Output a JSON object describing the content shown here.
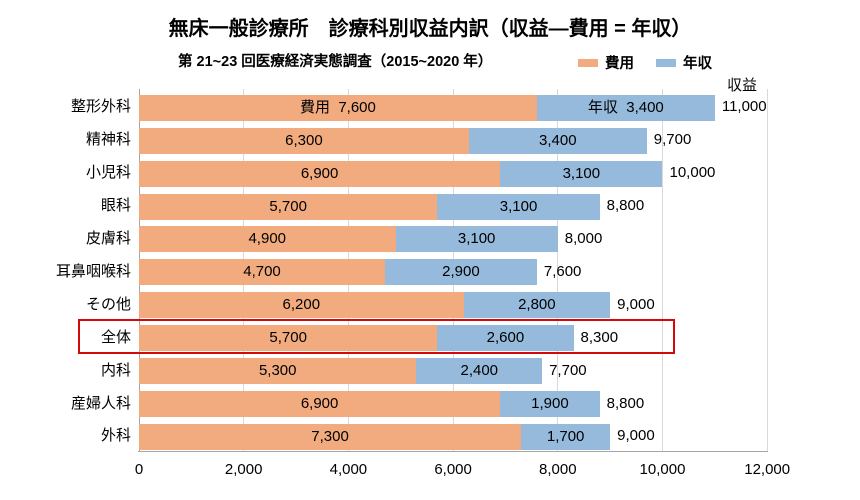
{
  "title": "無床一般診療所　診療科別収益内訳（収益―費用 = 年収）",
  "subtitle": "第 21~23 回医療経済実態調査（2015~2020 年）",
  "revenue_label": "収益",
  "legend": {
    "cost": "費用",
    "income": "年収"
  },
  "chart_data": {
    "type": "bar",
    "orientation": "horizontal-stacked",
    "title": "無床一般診療所　診療科別収益内訳（収益―費用 = 年収）",
    "subtitle": "第 21~23 回医療経済実態調査（2015~2020 年）",
    "categories": [
      "整形外科",
      "精神科",
      "小児科",
      "眼科",
      "皮膚科",
      "耳鼻咽喉科",
      "その他",
      "全体",
      "内科",
      "産婦人科",
      "外科"
    ],
    "series": [
      {
        "name": "費用",
        "values": [
          7600,
          6300,
          6900,
          5700,
          4900,
          4700,
          6200,
          5700,
          5300,
          6900,
          7300
        ]
      },
      {
        "name": "年収",
        "values": [
          3400,
          3400,
          3100,
          3100,
          3100,
          2900,
          2800,
          2600,
          2400,
          1900,
          1700
        ]
      }
    ],
    "totals": [
      11000,
      9700,
      10000,
      8800,
      8000,
      7600,
      9000,
      8300,
      7700,
      8800,
      9000
    ],
    "totals_axis_label": "収益",
    "x_ticks": [
      0,
      2000,
      4000,
      6000,
      8000,
      10000,
      12000
    ],
    "xlim": [
      0,
      12000
    ],
    "first_row_segment_prefixes": [
      "費用",
      "年収"
    ],
    "highlighted_category": "全体",
    "legend_position": "top-right",
    "grid": true
  },
  "colors": {
    "cost": "#f2ab7e",
    "income": "#95badc",
    "highlight": "#d20a0a",
    "gridline": "#d9d9d9",
    "zeroline": "#a6a6a6",
    "axis": "#a6a6a6"
  }
}
